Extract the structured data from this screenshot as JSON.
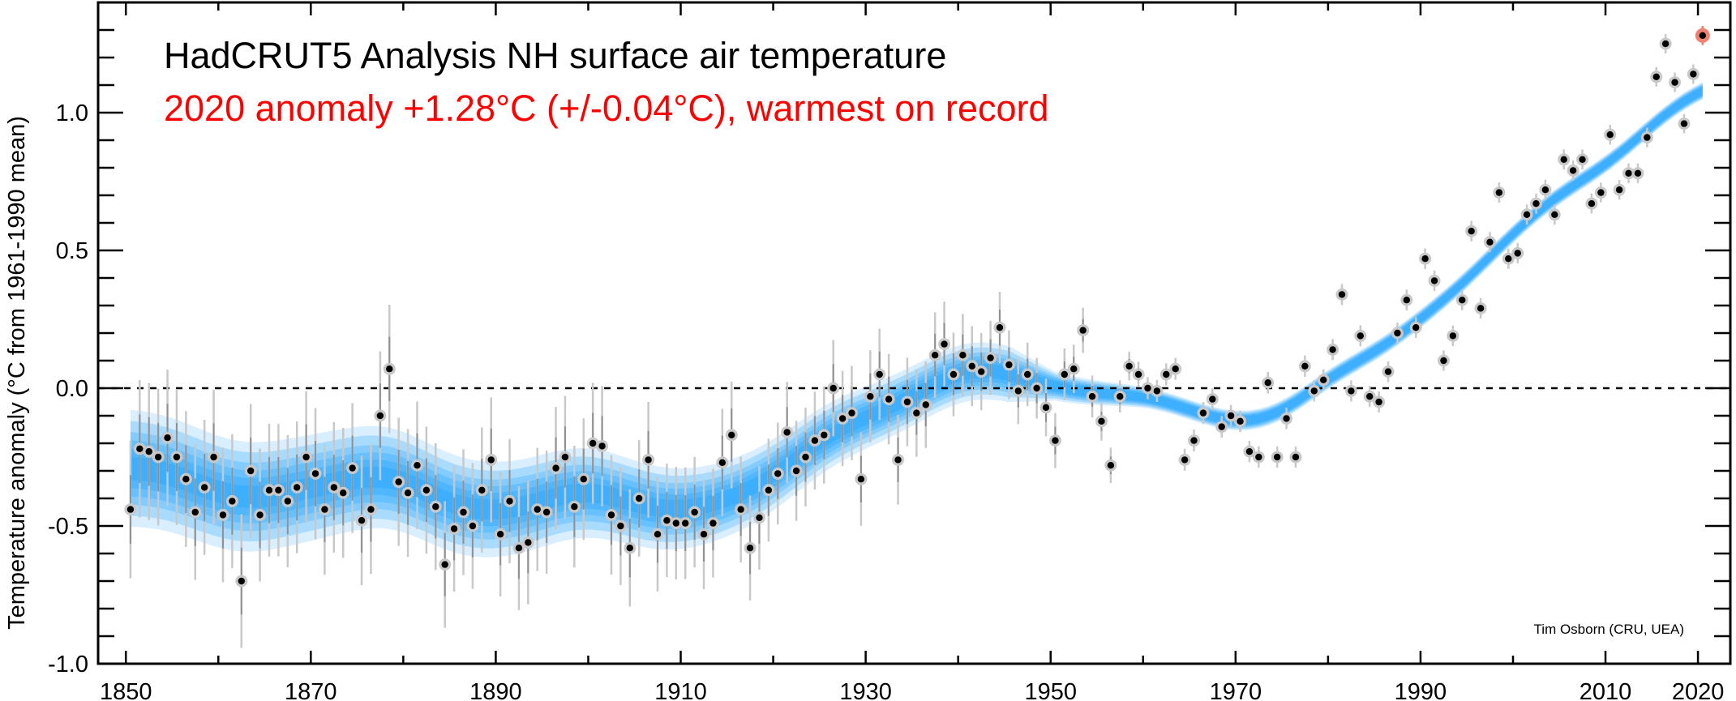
{
  "chart_data": {
    "type": "scatter",
    "title": "HadCRUT5 Analysis NH surface air temperature",
    "subtitle": "2020 anomaly +1.28°C (+/-0.04°C), warmest on record",
    "ylabel": "Temperature anomaly (°C from 1961-1990 mean)",
    "xlabel": "",
    "attribution": "Tim Osborn (CRU, UEA)",
    "xlim": [
      1847,
      2023.5
    ],
    "ylim": [
      -1.0,
      1.4
    ],
    "reference_line": 0.0,
    "x_tick_labels": [
      "1850",
      "1870",
      "1890",
      "1910",
      "1930",
      "1950",
      "1970",
      "1990",
      "2010",
      "2020"
    ],
    "y_tick_labels": [
      "-1.0",
      "-0.5",
      "0.0",
      "0.5",
      "1.0"
    ],
    "year_start": 1850,
    "values": [
      -0.44,
      -0.22,
      -0.23,
      -0.25,
      -0.18,
      -0.25,
      -0.33,
      -0.45,
      -0.36,
      -0.25,
      -0.46,
      -0.41,
      -0.7,
      -0.3,
      -0.46,
      -0.37,
      -0.37,
      -0.41,
      -0.36,
      -0.25,
      -0.31,
      -0.44,
      -0.36,
      -0.38,
      -0.29,
      -0.48,
      -0.44,
      -0.1,
      0.07,
      -0.34,
      -0.38,
      -0.28,
      -0.37,
      -0.43,
      -0.64,
      -0.51,
      -0.45,
      -0.5,
      -0.37,
      -0.26,
      -0.53,
      -0.41,
      -0.58,
      -0.56,
      -0.44,
      -0.45,
      -0.29,
      -0.25,
      -0.43,
      -0.33,
      -0.2,
      -0.21,
      -0.46,
      -0.5,
      -0.58,
      -0.4,
      -0.26,
      -0.53,
      -0.48,
      -0.49,
      -0.49,
      -0.45,
      -0.53,
      -0.49,
      -0.27,
      -0.17,
      -0.44,
      -0.58,
      -0.47,
      -0.37,
      -0.31,
      -0.16,
      -0.3,
      -0.25,
      -0.19,
      -0.17,
      0.0,
      -0.11,
      -0.09,
      -0.33,
      -0.03,
      0.05,
      -0.04,
      -0.26,
      -0.05,
      -0.09,
      -0.06,
      0.12,
      0.16,
      0.05,
      0.12,
      0.08,
      0.06,
      0.11,
      0.22,
      0.085,
      -0.01,
      0.05,
      0.0,
      -0.07,
      -0.19,
      0.05,
      0.07,
      0.21,
      -0.03,
      -0.12,
      -0.28,
      -0.03,
      0.08,
      0.05,
      0.0,
      -0.01,
      0.05,
      0.07,
      -0.26,
      -0.19,
      -0.09,
      -0.04,
      -0.14,
      -0.1,
      -0.12,
      -0.23,
      -0.25,
      0.02,
      -0.25,
      -0.11,
      -0.25,
      0.08,
      -0.01,
      0.03,
      0.14,
      0.34,
      -0.01,
      0.19,
      -0.03,
      -0.05,
      0.06,
      0.2,
      0.32,
      0.22,
      0.47,
      0.39,
      0.1,
      0.19,
      0.32,
      0.57,
      0.29,
      0.53,
      0.71,
      0.47,
      0.49,
      0.63,
      0.67,
      0.72,
      0.63,
      0.83,
      0.79,
      0.83,
      0.67,
      0.71,
      0.92,
      0.72,
      0.78,
      0.78,
      0.91,
      1.13,
      1.25,
      1.11,
      0.96,
      1.14,
      1.28
    ],
    "highlight_year": 2020,
    "error_halfwidth_knots": [
      [
        1850,
        0.25
      ],
      [
        1900,
        0.22
      ],
      [
        1940,
        0.15
      ],
      [
        1950,
        0.1
      ],
      [
        1960,
        0.04
      ],
      [
        2020,
        0.035
      ]
    ],
    "smooth_uncertainty_knots": [
      [
        1850,
        0.2
      ],
      [
        1900,
        0.15
      ],
      [
        1930,
        0.1
      ],
      [
        1945,
        0.09
      ],
      [
        1950,
        0.04
      ],
      [
        1960,
        0.025
      ],
      [
        2020,
        0.02
      ]
    ],
    "colors": {
      "band": "#0096ff",
      "point": "#000000",
      "point_halo": "#c8c8c8",
      "highlight_halo": "#f08070",
      "error_bar": "#c8c8c8",
      "error_bar_inner": "#909090",
      "subtitle": "#ff0000"
    }
  }
}
